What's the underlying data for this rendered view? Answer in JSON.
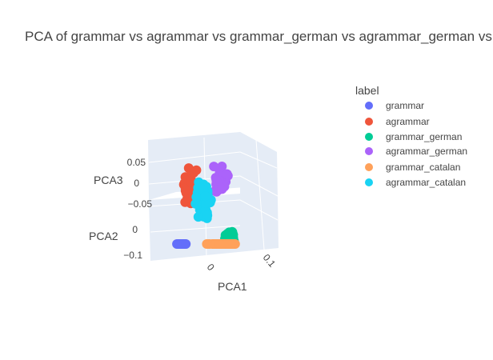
{
  "chart_data": {
    "type": "scatter",
    "projection": "3d",
    "title": "PCA of grammar vs agrammar vs grammar_german vs agrammar_german vs grammar_catalan vs agrammar_catalan",
    "axes": {
      "x": {
        "label": "PCA1",
        "ticks": [
          "0",
          "0.1"
        ]
      },
      "y": {
        "label": "PCA2",
        "ticks": [
          "0",
          "−0.1"
        ]
      },
      "z": {
        "label": "PCA3",
        "ticks": [
          "0.05",
          "0",
          "−0.05"
        ]
      }
    },
    "legend": {
      "title": "label",
      "placement": "top-right",
      "entries": [
        {
          "name": "grammar",
          "color": "#636efa"
        },
        {
          "name": "agrammar",
          "color": "#ef553b"
        },
        {
          "name": "grammar_german",
          "color": "#00cc96"
        },
        {
          "name": "agrammar_german",
          "color": "#ab63fa"
        },
        {
          "name": "grammar_catalan",
          "color": "#ffa15a"
        },
        {
          "name": "agrammar_catalan",
          "color": "#19d3f3"
        }
      ]
    },
    "series": [
      {
        "name": "grammar",
        "color": "#636efa",
        "center": [
          -0.06,
          -0.02,
          -0.06
        ],
        "spread": [
          0.012,
          0.015,
          0.015
        ],
        "count": 22
      },
      {
        "name": "agrammar",
        "color": "#ef553b",
        "center": [
          -0.04,
          -0.01,
          0.03
        ],
        "spread": [
          0.012,
          0.02,
          0.03
        ],
        "count": 50
      },
      {
        "name": "grammar_german",
        "color": "#00cc96",
        "center": [
          0.045,
          0.02,
          -0.035
        ],
        "spread": [
          0.01,
          0.012,
          0.015
        ],
        "count": 22
      },
      {
        "name": "agrammar_german",
        "color": "#ab63fa",
        "center": [
          0.03,
          0.02,
          0.035
        ],
        "spread": [
          0.014,
          0.015,
          0.02
        ],
        "count": 42
      },
      {
        "name": "grammar_catalan",
        "color": "#ffa15a",
        "center": [
          0.0,
          -0.04,
          -0.07
        ],
        "spread": [
          0.03,
          0.02,
          0.018
        ],
        "count": 75
      },
      {
        "name": "agrammar_catalan",
        "color": "#19d3f3",
        "center": [
          -0.005,
          0.01,
          0.015
        ],
        "spread": [
          0.015,
          0.02,
          0.03
        ],
        "count": 70
      }
    ]
  }
}
